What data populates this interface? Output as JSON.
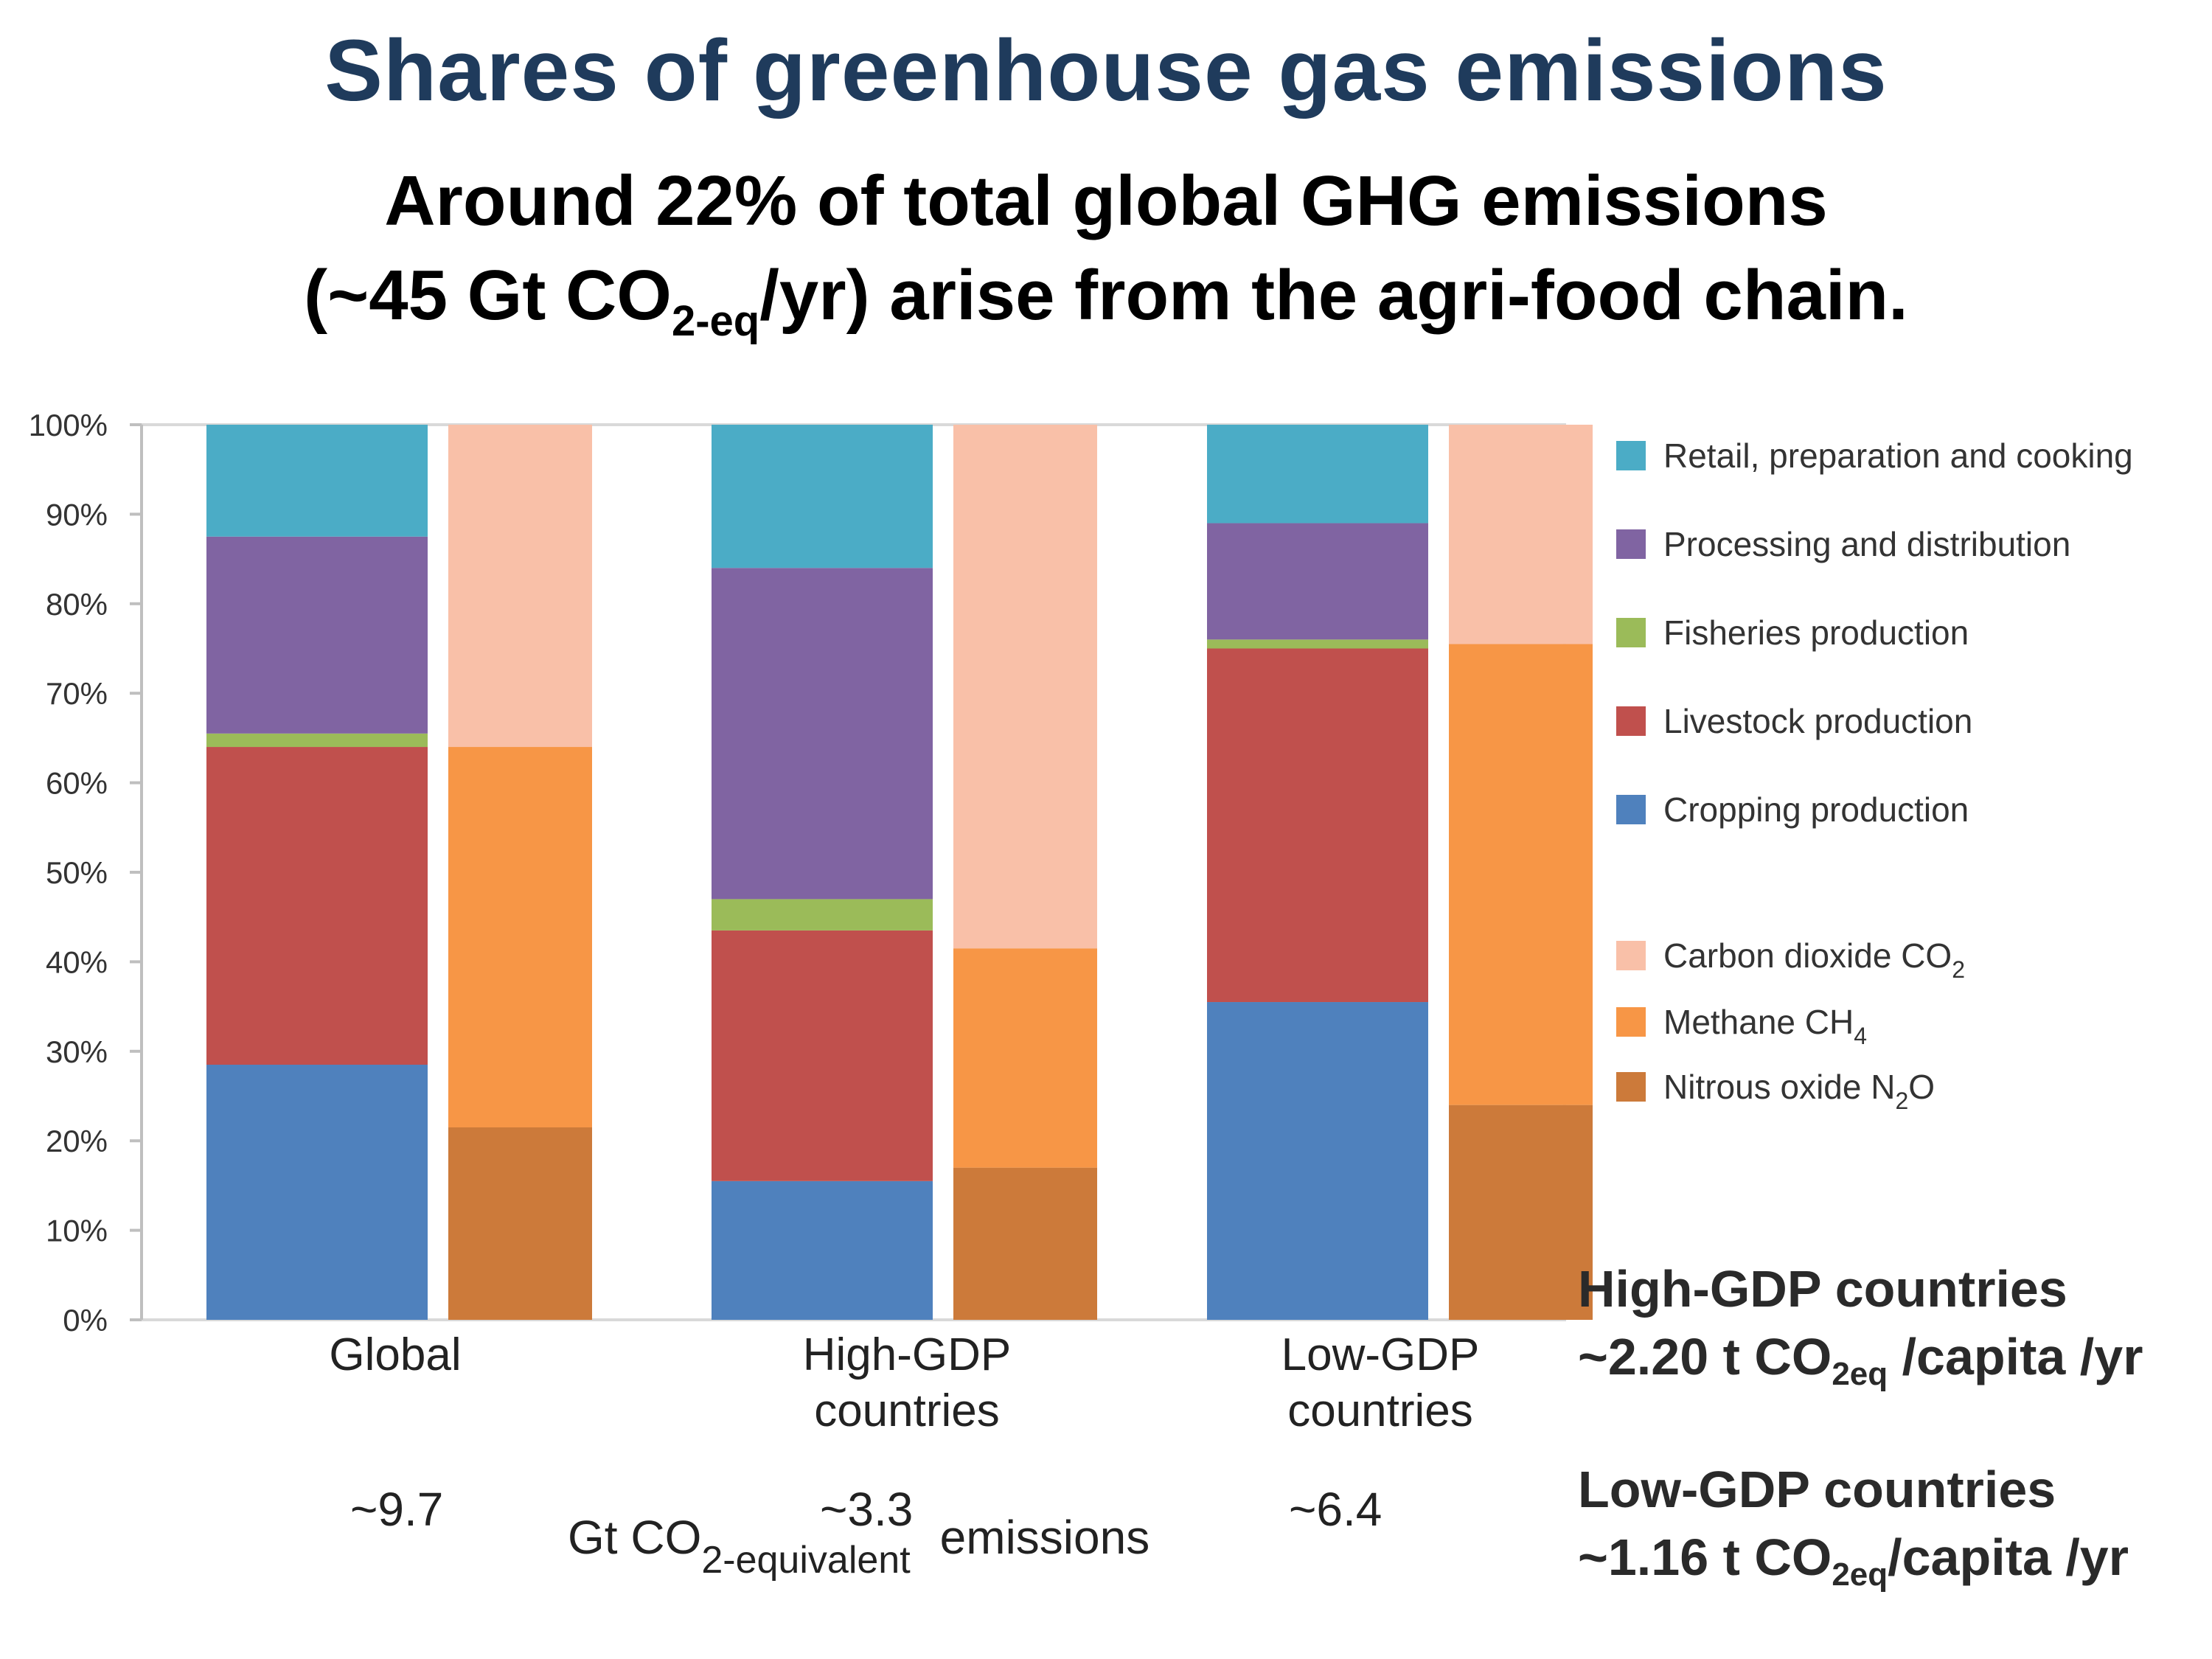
{
  "slide": {
    "title": "Shares of greenhouse gas emissions",
    "subtitle_line1": "Around 22% of total global GHG emissions",
    "subtitle_line2_pre": "(~45 Gt CO",
    "subtitle_line2_sub": "2-eq",
    "subtitle_line2_post": "/yr) arise from the agri-food chain."
  },
  "chart_data": {
    "type": "bar",
    "stacked": true,
    "yticks": [
      "0%",
      "10%",
      "20%",
      "30%",
      "40%",
      "50%",
      "60%",
      "70%",
      "80%",
      "90%",
      "100%"
    ],
    "ylim": [
      0,
      100
    ],
    "grid": false,
    "legend_position": "right",
    "categories": [
      "Global",
      "High-GDP countries",
      "Low-GDP countries"
    ],
    "category_lines": [
      [
        "Global"
      ],
      [
        "High-GDP",
        "countries"
      ],
      [
        "Low-GDP",
        "countries"
      ]
    ],
    "totals": [
      "~9.7",
      "~3.3",
      "~6.4"
    ],
    "totals_label_pre": "Gt  CO",
    "totals_label_sub": "2-equivalent",
    "totals_label_post": "emissions",
    "stage_series": [
      {
        "name": "Cropping production",
        "color": "#4f81bd",
        "values": [
          28.5,
          15.5,
          35.5
        ]
      },
      {
        "name": "Livestock production",
        "color": "#c0504d",
        "values": [
          35.5,
          28.0,
          39.5
        ]
      },
      {
        "name": "Fisheries production",
        "color": "#9bbb59",
        "values": [
          1.5,
          3.5,
          1.0
        ]
      },
      {
        "name": "Processing and distribution",
        "color": "#8064a2",
        "values": [
          22.0,
          37.0,
          13.0
        ]
      },
      {
        "name": "Retail, preparation and cooking",
        "color": "#4bacc6",
        "values": [
          12.5,
          16.0,
          11.0
        ]
      }
    ],
    "gas_series": [
      {
        "name": "Nitrous oxide N2O",
        "color": "#cc7a3a",
        "values": [
          21.5,
          17.0,
          24.0
        ]
      },
      {
        "name": "Methane CH4",
        "color": "#f79646",
        "values": [
          42.5,
          24.5,
          51.5
        ]
      },
      {
        "name": "Carbon dioxide CO2",
        "color": "#f9c0a8",
        "values": [
          36.0,
          58.5,
          24.5
        ]
      }
    ],
    "legend": [
      {
        "label": "Retail, preparation and cooking",
        "color": "#4bacc6"
      },
      {
        "label": "Processing and distribution",
        "color": "#8064a2"
      },
      {
        "label": "Fisheries production",
        "color": "#9bbb59"
      },
      {
        "label": "Livestock production",
        "color": "#c0504d"
      },
      {
        "label": "Cropping production",
        "color": "#4f81bd"
      },
      {
        "label": "Carbon dioxide CO",
        "sub": "2",
        "color": "#f9c0a8"
      },
      {
        "label": "Methane CH",
        "sub": "4",
        "color": "#f79646"
      },
      {
        "label": "Nitrous oxide N",
        "sub": "2",
        "post": "O",
        "color": "#cc7a3a"
      }
    ]
  },
  "per_capita": {
    "high_title": "High-GDP countries",
    "high_value_pre": "~2.20 t CO",
    "high_value_sub": "2eq",
    "high_value_post": " /capita /yr",
    "low_title": "Low-GDP countries",
    "low_value_pre": "~1.16 t CO",
    "low_value_sub": "2eq",
    "low_value_post": "/capita /yr"
  }
}
